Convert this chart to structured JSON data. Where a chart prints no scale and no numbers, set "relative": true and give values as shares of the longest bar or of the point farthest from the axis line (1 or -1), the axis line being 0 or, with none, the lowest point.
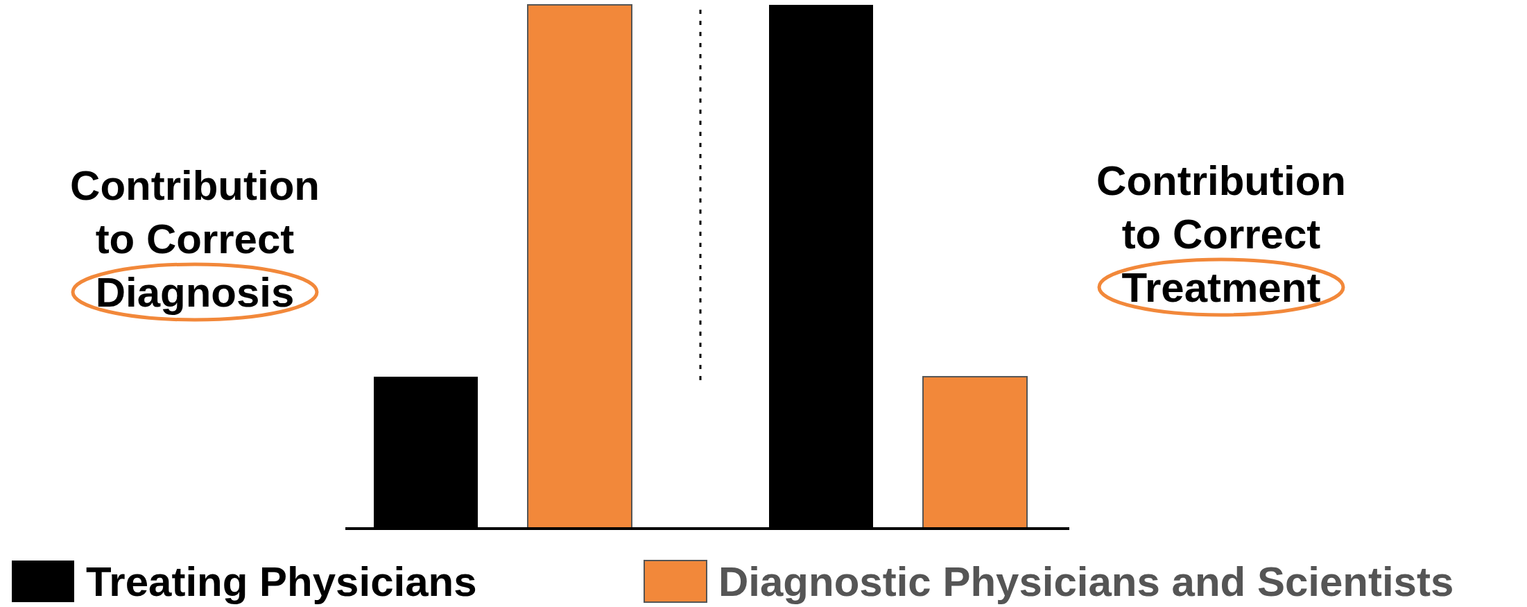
{
  "chart_data": {
    "type": "bar",
    "relative": true,
    "categories": [
      "Contribution to Correct Diagnosis",
      "Contribution to Correct Treatment"
    ],
    "series": [
      {
        "name": "Treating Physicians",
        "color": "#000000",
        "values": [
          0.29,
          1
        ]
      },
      {
        "name": "Diagnostic Physicians and Scientists",
        "color": "#f2883a",
        "values": [
          1,
          0.29
        ]
      }
    ],
    "legend": "bottom"
  }
}
